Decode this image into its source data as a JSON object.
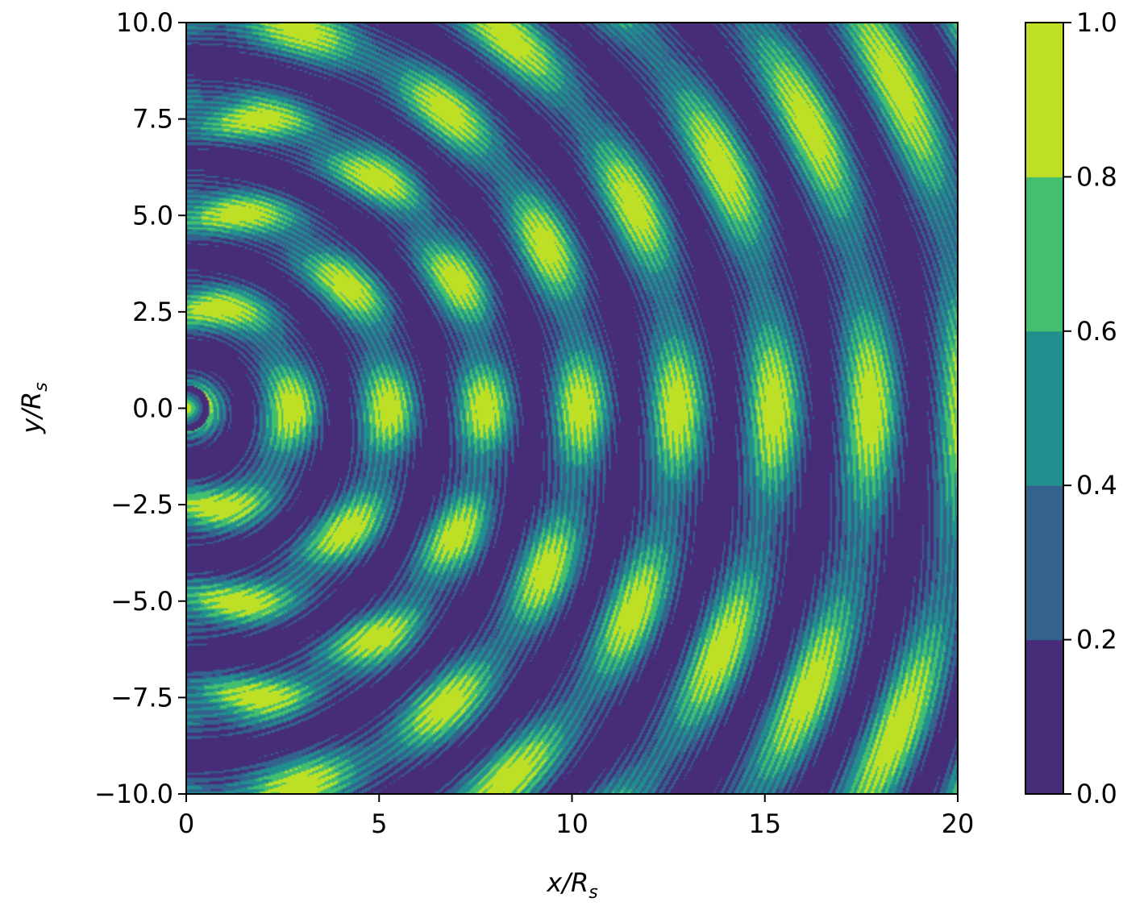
{
  "chart_data": {
    "type": "heatmap",
    "title": "",
    "xlabel": {
      "base": "x/R",
      "sub": "s"
    },
    "ylabel": {
      "base": "y/R",
      "sub": "s"
    },
    "xlim": [
      0,
      20
    ],
    "ylim": [
      -10,
      10
    ],
    "x_ticks": [
      0,
      5,
      10,
      15,
      20
    ],
    "x_tick_labels": [
      "0",
      "5",
      "10",
      "15",
      "20"
    ],
    "y_ticks": [
      -10,
      -7.5,
      -5,
      -2.5,
      0,
      2.5,
      5,
      7.5,
      10
    ],
    "y_tick_labels": [
      "−10.0",
      "−7.5",
      "−5.0",
      "−2.5",
      "0.0",
      "2.5",
      "5.0",
      "7.5",
      "10.0"
    ],
    "colorbar": {
      "levels": [
        0.0,
        0.2,
        0.4,
        0.6,
        0.8,
        1.0
      ],
      "tick_labels": [
        "0.0",
        "0.2",
        "0.4",
        "0.6",
        "0.8",
        "1.0"
      ],
      "colors": [
        "#472c7a",
        "#33638d",
        "#218f8d",
        "#44bf70",
        "#bddf26"
      ]
    },
    "description_of_field": "filled contour of normalized intensity from a source near origin; concentric wavefronts (period ~2.5 R_s) modulated by radial fringes",
    "grid": false
  }
}
